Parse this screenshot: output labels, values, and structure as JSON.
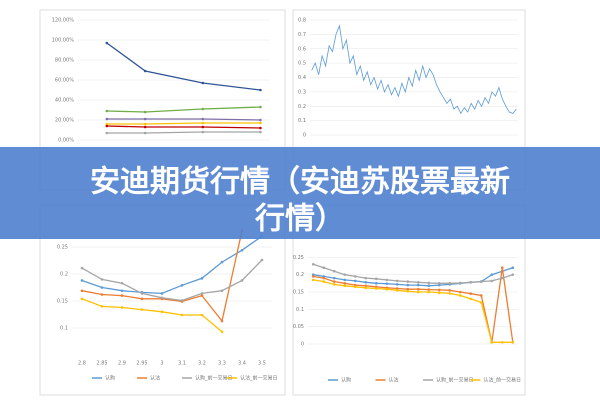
{
  "banner": {
    "title_line1": "安迪期货行情（安迪苏股票最新",
    "title_line2": "行情）"
  },
  "chart_data": [
    {
      "type": "line",
      "x": [
        15,
        35,
        65,
        95
      ],
      "xlim": [
        0,
        100
      ],
      "ylim": [
        0,
        120
      ],
      "yticks": [
        {
          "value": 0,
          "label": "0.00%"
        },
        {
          "value": 20,
          "label": "20.00%"
        },
        {
          "value": 40,
          "label": "40.00%"
        },
        {
          "value": 60,
          "label": "60.00%"
        },
        {
          "value": 80,
          "label": "80.00%"
        },
        {
          "value": 100,
          "label": "100.00%"
        },
        {
          "value": 120,
          "label": "120.00%"
        }
      ],
      "series": [
        {
          "color": "#2f5597",
          "values": [
            97,
            69,
            57,
            50
          ]
        },
        {
          "color": "#70ad47",
          "values": [
            29,
            28,
            31,
            33
          ]
        },
        {
          "color": "#7f6fa8",
          "values": [
            21,
            21,
            21,
            20
          ]
        },
        {
          "color": "#ffc000",
          "values": [
            16,
            16,
            17,
            17
          ]
        },
        {
          "color": "#c00000",
          "values": [
            14,
            13,
            13,
            12
          ]
        },
        {
          "color": "#a5a5a5",
          "values": [
            7,
            7,
            8,
            8
          ]
        }
      ]
    },
    {
      "type": "line",
      "ylim": [
        0,
        0.8
      ],
      "yticks": [
        0,
        0.1,
        0.2,
        0.3,
        0.4,
        0.5,
        0.6,
        0.7,
        0.8
      ],
      "series": [
        {
          "color": "#5b9bd5",
          "values": [
            0.45,
            0.5,
            0.42,
            0.55,
            0.48,
            0.62,
            0.58,
            0.7,
            0.76,
            0.6,
            0.66,
            0.5,
            0.55,
            0.42,
            0.48,
            0.38,
            0.44,
            0.35,
            0.4,
            0.32,
            0.38,
            0.3,
            0.35,
            0.28,
            0.33,
            0.27,
            0.36,
            0.3,
            0.4,
            0.34,
            0.45,
            0.38,
            0.48,
            0.4,
            0.46,
            0.42,
            0.35,
            0.3,
            0.26,
            0.22,
            0.25,
            0.18,
            0.2,
            0.15,
            0.19,
            0.16,
            0.22,
            0.18,
            0.24,
            0.2,
            0.26,
            0.22,
            0.3,
            0.27,
            0.33,
            0.25,
            0.2,
            0.16,
            0.15,
            0.18
          ]
        }
      ]
    },
    {
      "type": "line",
      "categories": [
        "2.8",
        "2.85",
        "2.9",
        "2.95",
        "3",
        "3.1",
        "3.2",
        "3.3",
        "3.4",
        "3.5"
      ],
      "ylim": [
        0.05,
        0.3
      ],
      "yticks": [
        0.1,
        0.15,
        0.2,
        0.25
      ],
      "series": [
        {
          "name": "认购",
          "color": "#5b9bd5",
          "values": [
            0.188,
            0.175,
            0.169,
            0.166,
            0.164,
            0.179,
            0.192,
            0.222,
            0.244,
            0.27
          ]
        },
        {
          "name": "认沽",
          "color": "#ed7d31",
          "values": [
            0.169,
            0.162,
            0.16,
            0.154,
            0.154,
            0.149,
            0.16,
            0.113,
            0.28,
            null
          ]
        },
        {
          "name": "认购_前一交易日",
          "color": "#a5a5a5",
          "values": [
            0.211,
            0.19,
            0.183,
            0.164,
            0.156,
            0.151,
            0.164,
            0.169,
            0.188,
            0.226
          ]
        },
        {
          "name": "认沽_前一交易日",
          "color": "#ffc000",
          "values": [
            0.154,
            0.14,
            0.138,
            0.134,
            0.13,
            0.124,
            0.124,
            0.093,
            null,
            null
          ]
        }
      ]
    },
    {
      "type": "line",
      "ylim": [
        0,
        0.3
      ],
      "yticks": [
        0,
        0.05,
        0.1,
        0.15,
        0.2,
        0.25
      ],
      "series": [
        {
          "name": "认购",
          "color": "#5b9bd5",
          "values": [
            0.2,
            0.195,
            0.19,
            0.185,
            0.182,
            0.178,
            0.175,
            0.174,
            0.172,
            0.17,
            0.17,
            0.168,
            0.17,
            0.172,
            0.175,
            0.178,
            0.18,
            0.2,
            0.21,
            0.22
          ]
        },
        {
          "name": "认沽",
          "color": "#ed7d31",
          "values": [
            0.195,
            0.19,
            0.18,
            0.175,
            0.17,
            0.168,
            0.165,
            0.162,
            0.16,
            0.158,
            0.158,
            0.157,
            0.156,
            0.155,
            0.15,
            0.145,
            0.14,
            0.005,
            0.22,
            0.005
          ]
        },
        {
          "name": "认购_前一交易日",
          "color": "#a5a5a5",
          "values": [
            0.23,
            0.22,
            0.21,
            0.2,
            0.195,
            0.19,
            0.188,
            0.185,
            0.182,
            0.18,
            0.178,
            0.176,
            0.175,
            0.175,
            0.176,
            0.178,
            0.18,
            0.182,
            0.19,
            0.2
          ]
        },
        {
          "name": "认沽_前一交易日",
          "color": "#ffc000",
          "values": [
            0.185,
            0.18,
            0.172,
            0.168,
            0.165,
            0.162,
            0.16,
            0.158,
            0.155,
            0.152,
            0.15,
            0.15,
            0.148,
            0.146,
            0.14,
            0.13,
            0.12,
            0.005,
            0.005,
            0.005
          ]
        }
      ]
    }
  ]
}
